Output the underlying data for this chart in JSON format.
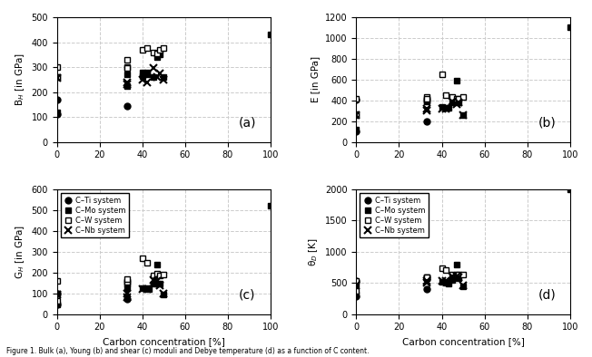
{
  "title": "Figure 1. Bulk (a), Young (b) and shear (c) moduli and Debye temperature (d) as a function of C content.",
  "systems": [
    "C-Ti system",
    "C-Mo system",
    "C-W system",
    "C-Nb system"
  ],
  "xlim": [
    0,
    100
  ],
  "xticks": [
    0,
    20,
    40,
    60,
    80,
    100
  ],
  "grid_color": "#cccccc",
  "grid_style": "--",
  "bg_color": "white",
  "BH": {
    "ylabel": "B$_H$ [in GPa]",
    "ylim": [
      0,
      500
    ],
    "yticks": [
      0,
      100,
      200,
      300,
      400,
      500
    ],
    "C-Ti": {
      "x": [
        0,
        0,
        33
      ],
      "y": [
        110,
        170,
        145
      ]
    },
    "C-Mo": {
      "x": [
        0,
        0,
        33,
        33,
        33,
        40,
        40,
        42,
        42,
        45,
        47,
        47,
        48,
        50,
        100
      ],
      "y": [
        120,
        260,
        225,
        270,
        300,
        265,
        280,
        270,
        280,
        260,
        340,
        355,
        350,
        260,
        430
      ]
    },
    "C-W": {
      "x": [
        0,
        0,
        33,
        33,
        40,
        42,
        45,
        47,
        48,
        50
      ],
      "y": [
        300,
        260,
        330,
        295,
        370,
        375,
        360,
        355,
        370,
        375
      ]
    },
    "C-Nb": {
      "x": [
        0,
        33,
        33,
        40,
        42,
        45,
        47,
        48,
        50
      ],
      "y": [
        255,
        230,
        240,
        250,
        240,
        295,
        260,
        275,
        250
      ]
    }
  },
  "E": {
    "ylabel": "E [in GPa]",
    "ylim": [
      0,
      1200
    ],
    "yticks": [
      0,
      200,
      400,
      600,
      800,
      1000,
      1200
    ],
    "C-Ti": {
      "x": [
        0,
        0,
        33
      ],
      "y": [
        100,
        410,
        200
      ]
    },
    "C-Mo": {
      "x": [
        0,
        0,
        33,
        33,
        33,
        40,
        42,
        43,
        45,
        47,
        47,
        48,
        50,
        100
      ],
      "y": [
        120,
        260,
        395,
        390,
        410,
        340,
        330,
        325,
        380,
        395,
        590,
        385,
        260,
        1100
      ]
    },
    "C-W": {
      "x": [
        0,
        0,
        33,
        33,
        40,
        42,
        45,
        47,
        48,
        50
      ],
      "y": [
        415,
        265,
        430,
        415,
        650,
        450,
        430,
        415,
        420,
        430
      ]
    },
    "C-Nb": {
      "x": [
        0,
        33,
        33,
        40,
        42,
        45,
        47,
        48,
        50
      ],
      "y": [
        260,
        300,
        320,
        320,
        320,
        390,
        360,
        380,
        260
      ]
    }
  },
  "GH": {
    "ylabel": "G$_H$ [in GPa]",
    "ylim": [
      0,
      600
    ],
    "yticks": [
      0,
      100,
      200,
      300,
      400,
      500,
      600
    ],
    "C-Ti": {
      "x": [
        0,
        0,
        33
      ],
      "y": [
        45,
        100,
        75
      ]
    },
    "C-Mo": {
      "x": [
        0,
        0,
        33,
        33,
        33,
        40,
        42,
        43,
        45,
        47,
        47,
        48,
        50,
        100
      ],
      "y": [
        47,
        100,
        125,
        155,
        145,
        125,
        125,
        120,
        145,
        145,
        240,
        145,
        95,
        520
      ]
    },
    "C-W": {
      "x": [
        0,
        0,
        33,
        33,
        40,
        42,
        45,
        47,
        48,
        50
      ],
      "y": [
        160,
        65,
        155,
        170,
        270,
        245,
        185,
        195,
        185,
        190
      ]
    },
    "C-Nb": {
      "x": [
        0,
        33,
        33,
        40,
        42,
        45,
        47,
        48,
        50
      ],
      "y": [
        95,
        80,
        100,
        120,
        120,
        165,
        160,
        140,
        100
      ]
    }
  },
  "TD": {
    "ylabel": "θ$_D$ [K]",
    "ylim": [
      0,
      2000
    ],
    "yticks": [
      0,
      500,
      1000,
      1500,
      2000
    ],
    "C-Ti": {
      "x": [
        0,
        0,
        33
      ],
      "y": [
        280,
        530,
        400
      ]
    },
    "C-Mo": {
      "x": [
        0,
        0,
        33,
        33,
        33,
        40,
        42,
        43,
        45,
        47,
        47,
        48,
        50,
        100
      ],
      "y": [
        310,
        480,
        570,
        570,
        590,
        520,
        510,
        495,
        550,
        600,
        790,
        570,
        450,
        2000
      ]
    },
    "C-W": {
      "x": [
        0,
        0,
        33,
        33,
        40,
        42,
        45,
        47,
        48,
        50
      ],
      "y": [
        530,
        380,
        590,
        590,
        730,
        710,
        640,
        640,
        640,
        640
      ]
    },
    "C-Nb": {
      "x": [
        0,
        33,
        33,
        40,
        42,
        45,
        47,
        48,
        50
      ],
      "y": [
        460,
        500,
        530,
        540,
        535,
        610,
        600,
        590,
        460
      ]
    }
  },
  "legend_systems": [
    "C–Ti system",
    "C–Mo system",
    "C–W system",
    "C–Nb system"
  ],
  "caption": "Figure 1. Bulk (a), Young (b) and shear (c) moduli and Debye temperature (d) as a function of C content."
}
